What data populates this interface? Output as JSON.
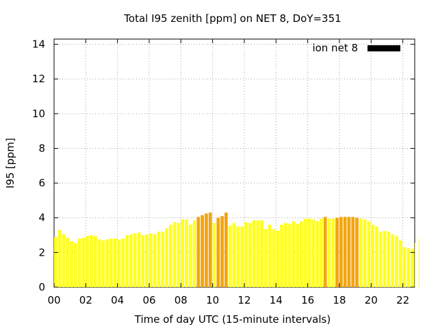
{
  "chart_data": {
    "type": "bar",
    "title": "Total I95 zenith [ppm] on NET 8, DoY=351",
    "xlabel": "Time of day UTC (15-minute intervals)",
    "ylabel": "I95 [ppm]",
    "xlim": [
      0,
      22.75
    ],
    "ylim": [
      0,
      14.3
    ],
    "x_ticks": [
      "00",
      "02",
      "04",
      "06",
      "08",
      "10",
      "12",
      "14",
      "16",
      "18",
      "20",
      "22"
    ],
    "x_tick_values": [
      0,
      2,
      4,
      6,
      8,
      10,
      12,
      14,
      16,
      18,
      20,
      22
    ],
    "y_ticks": [
      "0",
      "2",
      "4",
      "6",
      "8",
      "10",
      "12",
      "14"
    ],
    "y_tick_values": [
      0,
      2,
      4,
      6,
      8,
      10,
      12,
      14
    ],
    "grid": true,
    "legend": {
      "label": "ion net 8",
      "position": "top-right",
      "color": "#000000"
    },
    "bar_colors": {
      "low": "#ffff22",
      "high": "#f2a511"
    },
    "threshold": 4.0,
    "bar_interval_hours": 0.25,
    "values": [
      2.9,
      3.3,
      3.05,
      2.85,
      2.65,
      2.55,
      2.8,
      2.85,
      2.95,
      3.0,
      2.95,
      2.75,
      2.7,
      2.75,
      2.8,
      2.8,
      2.75,
      2.8,
      3.0,
      3.05,
      3.1,
      3.15,
      3.0,
      3.05,
      3.1,
      3.05,
      3.2,
      3.2,
      3.4,
      3.6,
      3.75,
      3.7,
      3.9,
      3.9,
      3.6,
      3.85,
      4.05,
      4.15,
      4.25,
      4.3,
      3.7,
      4.0,
      4.1,
      4.3,
      3.55,
      3.7,
      3.5,
      3.5,
      3.75,
      3.7,
      3.85,
      3.85,
      3.85,
      3.35,
      3.6,
      3.35,
      3.25,
      3.6,
      3.7,
      3.65,
      3.8,
      3.65,
      3.8,
      3.95,
      3.95,
      3.9,
      3.8,
      3.95,
      4.05,
      3.95,
      3.95,
      4.0,
      4.05,
      4.05,
      4.05,
      4.05,
      4.0,
      3.95,
      3.9,
      3.8,
      3.6,
      3.5,
      3.2,
      3.25,
      3.2,
      3.05,
      2.95,
      2.7,
      2.3,
      2.25,
      2.2,
      2.55,
      2.8
    ]
  }
}
